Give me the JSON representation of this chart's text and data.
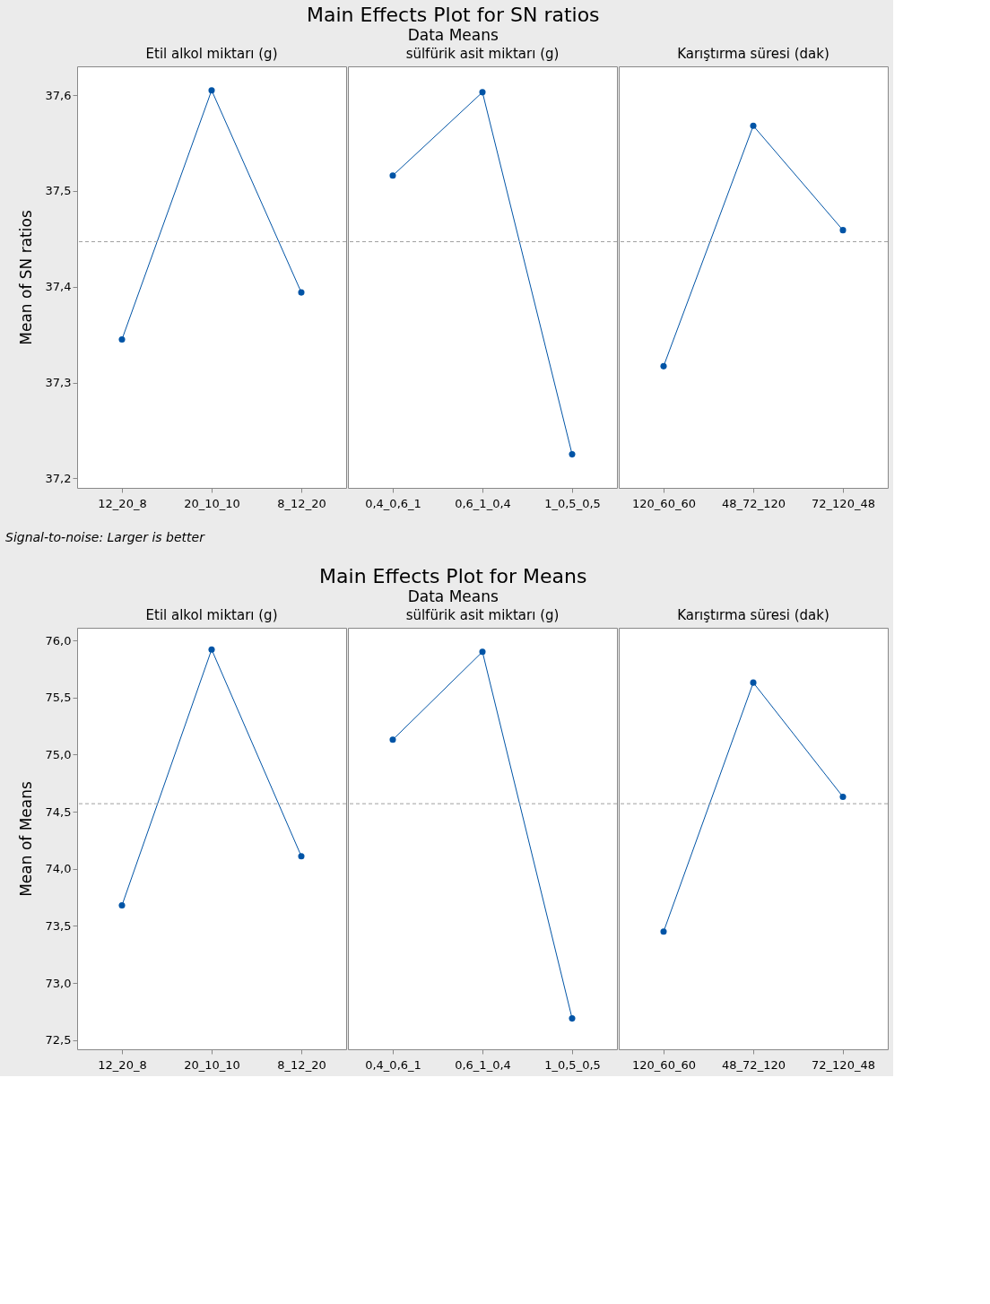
{
  "chart_data": [
    {
      "type": "line",
      "title": "Etil alkol miktarı (g)",
      "annotations": [
        "Main Effects Plot for SN ratios",
        "Data Means",
        "Signal-to-noise: Larger is better"
      ],
      "ylabel": "Mean of SN ratios",
      "categories": [
        "12_20_8",
        "20_10_10",
        "8_12_20"
      ],
      "values": [
        37.345,
        37.605,
        37.394
      ],
      "color": "#0054a6",
      "marker": "circle",
      "grid": false,
      "ylim": [
        37.19,
        37.63
      ],
      "yticks": [
        {
          "value": 37.2,
          "label": "37,2"
        },
        {
          "value": 37.3,
          "label": "37,3"
        },
        {
          "value": 37.4,
          "label": "37,4"
        },
        {
          "value": 37.5,
          "label": "37,5"
        },
        {
          "value": 37.6,
          "label": "37,6"
        }
      ],
      "ref_lines": [
        {
          "axis": "y",
          "value": 37.447,
          "color": "#a0a0a0",
          "line_style": "dashed"
        }
      ]
    },
    {
      "type": "line",
      "title": "sülfürik asit miktarı (g)",
      "categories": [
        "0,4_0,6_1",
        "0,6_1_0,4",
        "1_0,5_0,5"
      ],
      "values": [
        37.516,
        37.603,
        37.225
      ],
      "color": "#0054a6",
      "marker": "circle",
      "grid": false,
      "tick_labels": "x",
      "ylim": [
        37.19,
        37.63
      ],
      "ref_lines": [
        {
          "axis": "y",
          "value": 37.447,
          "color": "#a0a0a0",
          "line_style": "dashed"
        }
      ]
    },
    {
      "type": "line",
      "title": "Karıştırma süresi (dak)",
      "categories": [
        "120_60_60",
        "48_72_120",
        "72_120_48"
      ],
      "values": [
        37.317,
        37.568,
        37.459
      ],
      "color": "#0054a6",
      "marker": "circle",
      "grid": false,
      "tick_labels": "x",
      "ylim": [
        37.19,
        37.63
      ],
      "ref_lines": [
        {
          "axis": "y",
          "value": 37.447,
          "color": "#a0a0a0",
          "line_style": "dashed"
        }
      ]
    },
    {
      "type": "line",
      "title": "Etil alkol miktarı (g)",
      "annotations": [
        "Main Effects Plot for Means",
        "Data Means"
      ],
      "ylabel": "Mean of Means",
      "categories": [
        "12_20_8",
        "20_10_10",
        "8_12_20"
      ],
      "values": [
        73.68,
        75.92,
        74.11
      ],
      "color": "#0054a6",
      "marker": "circle",
      "grid": false,
      "ylim": [
        72.42,
        76.11
      ],
      "yticks": [
        {
          "value": 72.5,
          "label": "72,5"
        },
        {
          "value": 73.0,
          "label": "73,0"
        },
        {
          "value": 73.5,
          "label": "73,5"
        },
        {
          "value": 74.0,
          "label": "74,0"
        },
        {
          "value": 74.5,
          "label": "74,5"
        },
        {
          "value": 75.0,
          "label": "75,0"
        },
        {
          "value": 75.5,
          "label": "75,5"
        },
        {
          "value": 76.0,
          "label": "76,0"
        }
      ],
      "ref_lines": [
        {
          "axis": "y",
          "value": 74.57,
          "color": "#a0a0a0",
          "line_style": "dashed"
        }
      ]
    },
    {
      "type": "line",
      "title": "sülfürik asit miktarı (g)",
      "categories": [
        "0,4_0,6_1",
        "0,6_1_0,4",
        "1_0,5_0,5"
      ],
      "values": [
        75.13,
        75.9,
        72.69
      ],
      "color": "#0054a6",
      "marker": "circle",
      "grid": false,
      "tick_labels": "x",
      "ylim": [
        72.42,
        76.11
      ],
      "ref_lines": [
        {
          "axis": "y",
          "value": 74.57,
          "color": "#a0a0a0",
          "line_style": "dashed"
        }
      ]
    },
    {
      "type": "line",
      "title": "Karıştırma süresi (dak)",
      "categories": [
        "120_60_60",
        "48_72_120",
        "72_120_48"
      ],
      "values": [
        73.45,
        75.63,
        74.63
      ],
      "color": "#0054a6",
      "marker": "circle",
      "grid": false,
      "tick_labels": "x",
      "ylim": [
        72.42,
        76.11
      ],
      "ref_lines": [
        {
          "axis": "y",
          "value": 74.57,
          "color": "#a0a0a0",
          "line_style": "dashed"
        }
      ]
    }
  ]
}
